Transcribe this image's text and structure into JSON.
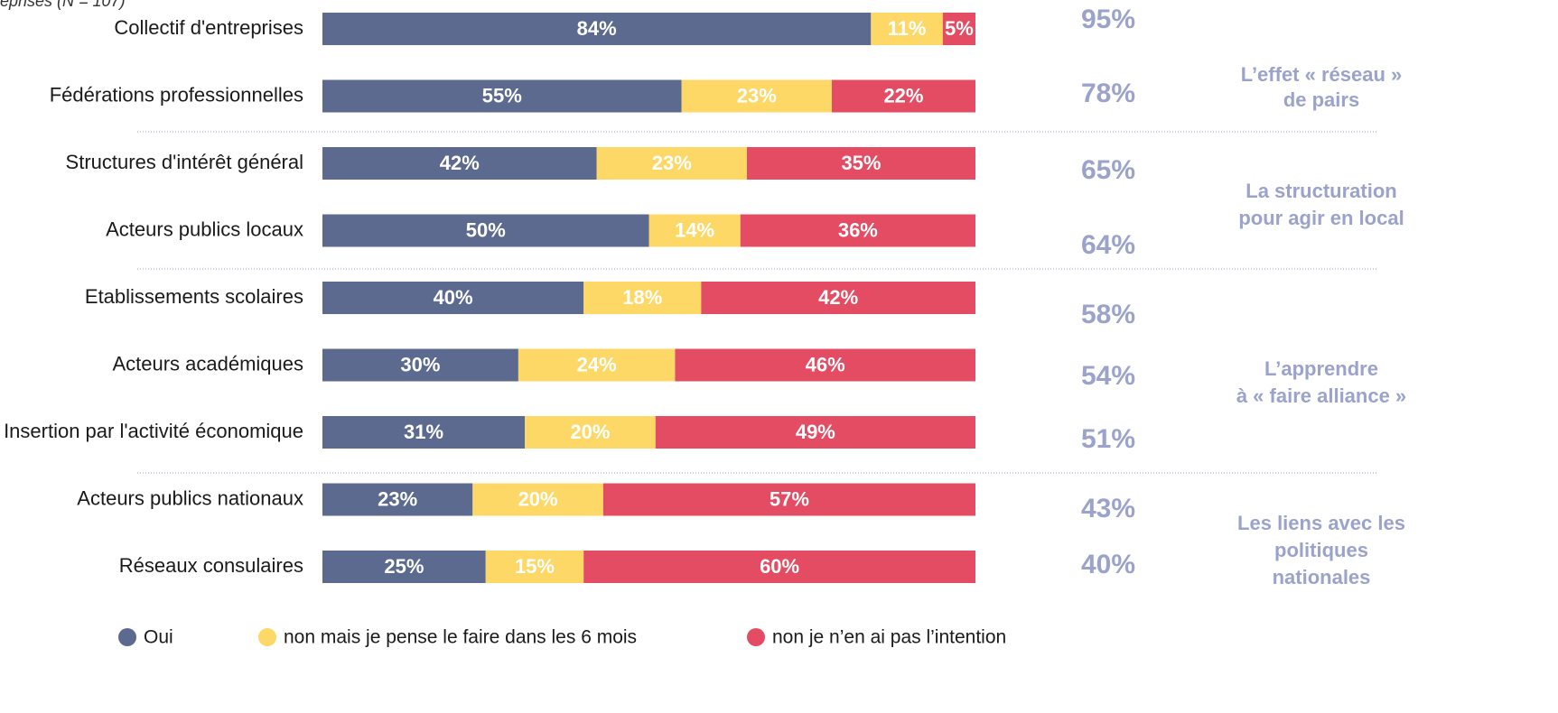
{
  "chart_data": {
    "type": "bar",
    "orientation": "horizontal",
    "stacked": true,
    "subtitle": "eprises  (N = 107)",
    "categories": [
      "Collectif d'entreprises",
      "Fédérations professionnelles",
      "Structures d'intérêt général",
      "Acteurs publics locaux",
      "Etablissements scolaires",
      "Acteurs académiques",
      "Insertion par l'activité économique",
      "Acteurs publics nationaux",
      "Réseaux consulaires"
    ],
    "series": [
      {
        "name": "Oui",
        "color": "#5b6a8e",
        "values": [
          84,
          55,
          42,
          50,
          40,
          30,
          31,
          23,
          25
        ],
        "value_labels": [
          "84%",
          "55%",
          "42%",
          "50%",
          "40%",
          "30%",
          "31%",
          "23%",
          "25%"
        ]
      },
      {
        "name": "non mais je pense le faire dans les 6 mois",
        "color": "#fdd866",
        "values": [
          11,
          23,
          23,
          14,
          18,
          24,
          20,
          20,
          15
        ],
        "value_labels": [
          "11%",
          "23%",
          "23%",
          "14%",
          "18%",
          "24%",
          "20%",
          "20%",
          "15%"
        ]
      },
      {
        "name": "non je n’en ai pas l’intention",
        "color": "#e34c62",
        "values": [
          5,
          22,
          35,
          36,
          42,
          46,
          49,
          57,
          60
        ],
        "value_labels": [
          "5%",
          "22%",
          "35%",
          "36%",
          "42%",
          "46%",
          "49%",
          "57%",
          "60%"
        ]
      }
    ],
    "totals": {
      "values": [
        95,
        78,
        65,
        64,
        58,
        54,
        51,
        43,
        40
      ],
      "value_labels": [
        "95%",
        "78%",
        "65%",
        "64%",
        "58%",
        "54%",
        "51%",
        "43%",
        "40%"
      ]
    },
    "annotations": [
      [
        "L’effet « réseau »",
        "de pairs"
      ],
      [
        "La structuration",
        "pour agir en local"
      ],
      [
        "L’apprendre",
        "à « faire alliance »"
      ],
      [
        "Les liens avec les",
        "politiques",
        "nationales"
      ]
    ],
    "xlim": [
      0,
      100
    ]
  }
}
